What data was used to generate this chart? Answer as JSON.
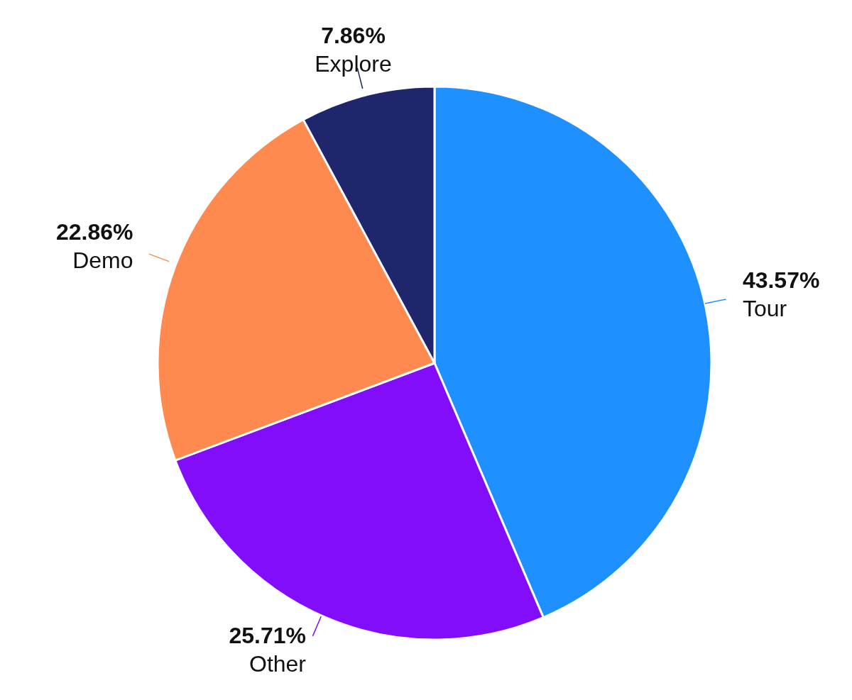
{
  "chart_data": {
    "type": "pie",
    "categories": [
      "Tour",
      "Other",
      "Demo",
      "Explore"
    ],
    "values": [
      43.57,
      25.71,
      22.86,
      7.86
    ],
    "value_labels": [
      "43.57%",
      "25.71%",
      "22.86%",
      "7.86%"
    ],
    "colors": [
      "#1e90ff",
      "#820dfb",
      "#fe8a50",
      "#1f266b"
    ],
    "legend": false
  }
}
